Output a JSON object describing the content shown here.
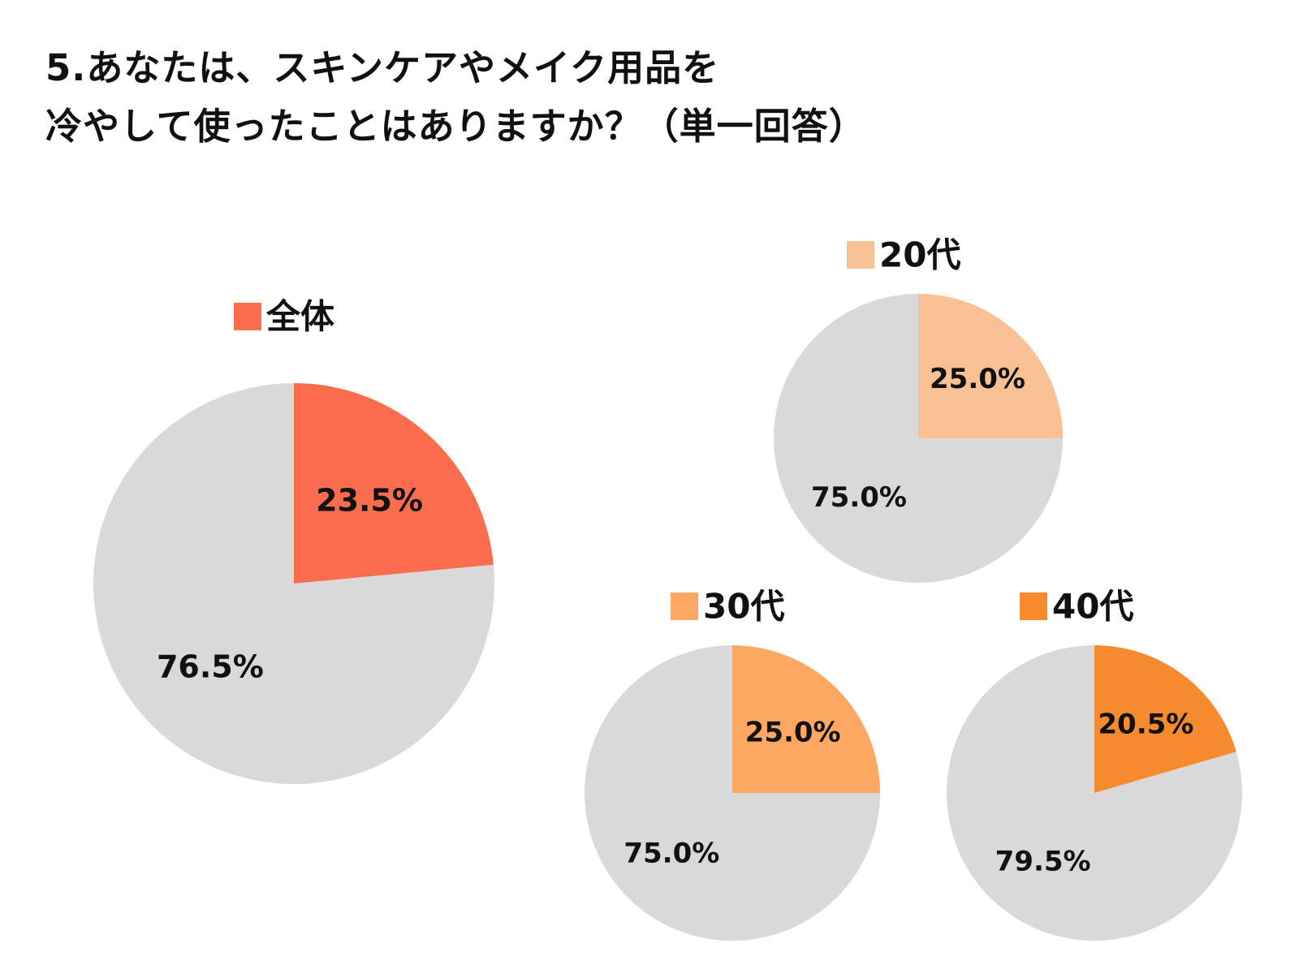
{
  "title": {
    "line1": "5.あなたは、スキンケアやメイク用品を",
    "line2": "冷やして使ったことはありますか？（単一回答）"
  },
  "colors": {
    "rest": "#d9d9d9",
    "overall": "#f96d4e",
    "age20": "#f9c093",
    "age30": "#fca862",
    "age40": "#f68b2e"
  },
  "chart_data": [
    {
      "type": "pie",
      "legend": "全体",
      "values": [
        23.5,
        76.5
      ],
      "labels": [
        "23.5%",
        "76.5%"
      ],
      "colors": [
        "#f96d4e",
        "#d9d9d9"
      ]
    },
    {
      "type": "pie",
      "legend": "20代",
      "values": [
        25.0,
        75.0
      ],
      "labels": [
        "25.0%",
        "75.0%"
      ],
      "colors": [
        "#f9c093",
        "#d9d9d9"
      ]
    },
    {
      "type": "pie",
      "legend": "30代",
      "values": [
        25.0,
        75.0
      ],
      "labels": [
        "25.0%",
        "75.0%"
      ],
      "colors": [
        "#fca862",
        "#d9d9d9"
      ]
    },
    {
      "type": "pie",
      "legend": "40代",
      "values": [
        20.5,
        79.5
      ],
      "labels": [
        "20.5%",
        "79.5%"
      ],
      "colors": [
        "#f68b2e",
        "#d9d9d9"
      ]
    }
  ]
}
